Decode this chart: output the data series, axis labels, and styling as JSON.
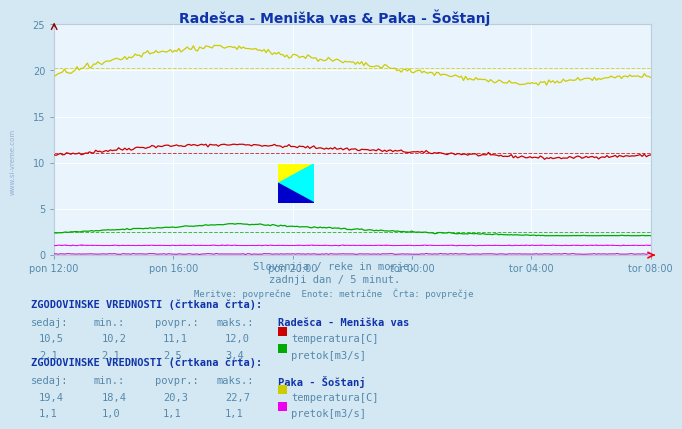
{
  "title": "Radešca - Meniška vas & Paka - Šoštanj",
  "subtitle1": "Slovenija / reke in morje.",
  "subtitle2": "zadnji dan / 5 minut.",
  "subtitle3": "Meritve: povprečne  Enote: metrične  Črta: povprečje",
  "xtick_labels": [
    "pon 12:00",
    "pon 16:00",
    "pon 20:00",
    "tor 00:00",
    "tor 04:00",
    "tor 08:00"
  ],
  "n_points": 288,
  "ylim": [
    0,
    25
  ],
  "yticks": [
    0,
    5,
    10,
    15,
    20,
    25
  ],
  "fig_bg": "#d4e8f4",
  "plot_bg": "#eaf4fc",
  "grid_color": "#ffffff",
  "text_color": "#5588aa",
  "title_color": "#1133aa",
  "s1_temp_color": "#cc0000",
  "s1_flow_color": "#00aa00",
  "s1_level_color": "#bb00bb",
  "s2_temp_color": "#cccc00",
  "s2_flow_color": "#ee00ee",
  "s1_name": "Radešca - Meniška vas",
  "s1_temp_now": "10,5",
  "s1_temp_min": "10,2",
  "s1_temp_avg": 11.1,
  "s1_temp_avg_str": "11,1",
  "s1_temp_max": "12,0",
  "s1_flow_now": "2,1",
  "s1_flow_min": "2,1",
  "s1_flow_avg": 2.5,
  "s1_flow_avg_str": "2,5",
  "s1_flow_max": "3,4",
  "s2_name": "Paka - Šoštanj",
  "s2_temp_now": "19,4",
  "s2_temp_min": "18,4",
  "s2_temp_avg": 20.3,
  "s2_temp_avg_str": "20,3",
  "s2_temp_max": "22,7",
  "s2_flow_now": "1,1",
  "s2_flow_min": "1,0",
  "s2_flow_avg": 1.1,
  "s2_flow_avg_str": "1,1",
  "s2_flow_max": "1,1",
  "lbl_temp": "temperatura[C]",
  "lbl_flow": "pretok[m3/s]",
  "tbl_header": "ZGODOVINSKE VREDNOSTI (črtkana črta):",
  "col_sedaj": "sedaj:",
  "col_min": "min.:",
  "col_povpr": "povpr.:",
  "col_maks": "maks.:"
}
